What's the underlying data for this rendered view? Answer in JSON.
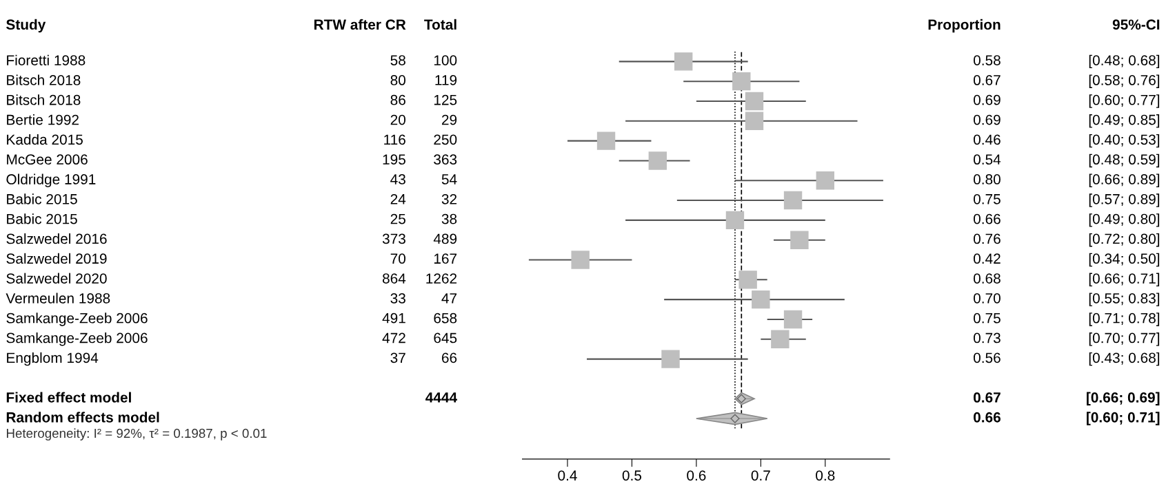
{
  "chart_data": [
    {
      "type": "other",
      "categories": [
        "Study",
        "RTW after CR",
        "Total"
      ],
      "y_categories": [
        "Fioretti 1988",
        "Bitsch 2018",
        "Bitsch 2018",
        "Bertie 1992",
        "Kadda 2015",
        "McGee 2006",
        "Oldridge 1991",
        "Babic 2015",
        "Babic 2015",
        "Salzwedel 2016",
        "Salzwedel 2019",
        "Salzwedel 2020",
        "Vermeulen 1988",
        "Samkange-Zeeb 2006",
        "Samkange-Zeeb 2006",
        "Engblom 1994",
        null,
        "Fixed effect model",
        "Random effects model"
      ],
      "cell_labels": [
        [
          "58",
          "100"
        ],
        [
          "80",
          "119"
        ],
        [
          "86",
          "125"
        ],
        [
          "20",
          "29"
        ],
        [
          "116",
          "250"
        ],
        [
          "195",
          "363"
        ],
        [
          "43",
          "54"
        ],
        [
          "24",
          "32"
        ],
        [
          "25",
          "38"
        ],
        [
          "373",
          "489"
        ],
        [
          "70",
          "167"
        ],
        [
          "864",
          "1262"
        ],
        [
          "33",
          "47"
        ],
        [
          "491",
          "658"
        ],
        [
          "472",
          "645"
        ],
        [
          "37",
          "66"
        ],
        [
          null,
          null
        ],
        [
          null,
          "4444"
        ],
        [
          null,
          null
        ]
      ],
      "annotations": [
        "Heterogeneity: I² = 92%, τ² = 0.1987, p < 0.01"
      ]
    },
    {
      "type": "scatter",
      "orientation": "horizontal",
      "categories": [
        null,
        null,
        null,
        null,
        null,
        null,
        null,
        null,
        null,
        null,
        null,
        null,
        null,
        null,
        null,
        null,
        null,
        null,
        null
      ],
      "xlim": [
        0.33,
        0.9
      ],
      "xticks": [
        0.4,
        0.5,
        0.6,
        0.7,
        0.8
      ],
      "ref_lines": [
        {
          "axis": "x",
          "value": 0.67,
          "line_style": "dashed",
          "color": "#000000"
        },
        {
          "axis": "x",
          "value": 0.66,
          "line_style": "dotted",
          "color": "#000000"
        }
      ],
      "series": [
        {
          "type": "scatter",
          "marker": "square",
          "color": "#bebebe",
          "values": [
            0.58,
            0.67,
            0.69,
            0.69,
            0.46,
            0.54,
            0.8,
            0.75,
            0.66,
            0.76,
            0.42,
            0.68,
            0.7,
            0.75,
            0.73,
            0.56,
            null,
            null,
            null
          ],
          "errors": [
            [
              0.48,
              0.68
            ],
            [
              0.58,
              0.76
            ],
            [
              0.6,
              0.77
            ],
            [
              0.49,
              0.85
            ],
            [
              0.4,
              0.53
            ],
            [
              0.48,
              0.59
            ],
            [
              0.66,
              0.89
            ],
            [
              0.57,
              0.89
            ],
            [
              0.49,
              0.8
            ],
            [
              0.72,
              0.8
            ],
            [
              0.34,
              0.5
            ],
            [
              0.66,
              0.71
            ],
            [
              0.55,
              0.83
            ],
            [
              0.71,
              0.78
            ],
            [
              0.7,
              0.77
            ],
            [
              0.43,
              0.68
            ],
            null,
            null,
            null
          ]
        },
        {
          "type": "scatter",
          "marker": "diamond",
          "color": "#c0c0c0",
          "values": [
            null,
            null,
            null,
            null,
            null,
            null,
            null,
            null,
            null,
            null,
            null,
            null,
            null,
            null,
            null,
            null,
            null,
            0.67,
            0.66
          ],
          "errors": [
            null,
            null,
            null,
            null,
            null,
            null,
            null,
            null,
            null,
            null,
            null,
            null,
            null,
            null,
            null,
            null,
            null,
            [
              0.66,
              0.69
            ],
            [
              0.6,
              0.71
            ]
          ]
        }
      ]
    },
    {
      "type": "other",
      "categories": [
        "Proportion",
        "95%-CI"
      ],
      "cell_labels": [
        [
          "0.58",
          "[0.48; 0.68]"
        ],
        [
          "0.67",
          "[0.58; 0.76]"
        ],
        [
          "0.69",
          "[0.60; 0.77]"
        ],
        [
          "0.69",
          "[0.49; 0.85]"
        ],
        [
          "0.46",
          "[0.40; 0.53]"
        ],
        [
          "0.54",
          "[0.48; 0.59]"
        ],
        [
          "0.80",
          "[0.66; 0.89]"
        ],
        [
          "0.75",
          "[0.57; 0.89]"
        ],
        [
          "0.66",
          "[0.49; 0.80]"
        ],
        [
          "0.76",
          "[0.72; 0.80]"
        ],
        [
          "0.42",
          "[0.34; 0.50]"
        ],
        [
          "0.68",
          "[0.66; 0.71]"
        ],
        [
          "0.70",
          "[0.55; 0.83]"
        ],
        [
          "0.75",
          "[0.71; 0.78]"
        ],
        [
          "0.73",
          "[0.70; 0.77]"
        ],
        [
          "0.56",
          "[0.43; 0.68]"
        ],
        [
          null,
          null
        ],
        [
          "0.67",
          "[0.66; 0.69]"
        ],
        [
          "0.66",
          "[0.60; 0.71]"
        ]
      ]
    }
  ]
}
